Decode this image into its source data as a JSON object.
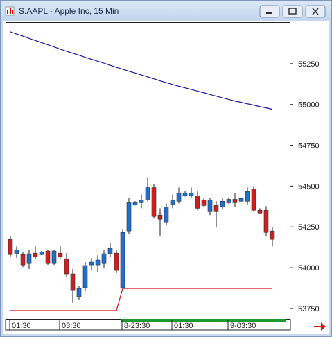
{
  "chart_data": {
    "type": "candlestick",
    "title": "S.AAPL - Apple Inc, 15 Min",
    "categories": [
      "01:30",
      null,
      null,
      null,
      null,
      null,
      null,
      null,
      "03:30",
      null,
      null,
      null,
      null,
      null,
      null,
      null,
      null,
      null,
      "8-23:30",
      null,
      null,
      null,
      null,
      null,
      null,
      null,
      "01:30",
      null,
      null,
      null,
      null,
      null,
      null,
      null,
      null,
      "9-03:30",
      null,
      null,
      null,
      null,
      null,
      null,
      null
    ],
    "open": [
      54174,
      54085,
      54080,
      54025,
      54089,
      54080,
      54102,
      54025,
      54089,
      54055,
      53962,
      53822,
      53877,
      54017,
      54017,
      54025,
      54085,
      54089,
      53877,
      54225,
      54386,
      54398,
      54419,
      54491,
      54322,
      54280,
      54386,
      54407,
      54441,
      54441,
      54441,
      54415,
      54343,
      54381,
      54373,
      54398,
      54419,
      54407,
      54407,
      54483,
      54352,
      54352,
      54225
    ],
    "high": [
      54195,
      54131,
      54097,
      54110,
      54131,
      54102,
      54110,
      54110,
      54131,
      54089,
      53992,
      53890,
      54034,
      54059,
      54076,
      54110,
      54153,
      54110,
      54237,
      54428,
      54407,
      54449,
      54555,
      54513,
      54364,
      54394,
      54449,
      54491,
      54470,
      54491,
      54470,
      54424,
      54428,
      54407,
      54428,
      54430,
      54458,
      54430,
      54491,
      54500,
      54364,
      54377,
      54250
    ],
    "low": [
      54068,
      54059,
      54004,
      53992,
      54055,
      54076,
      54017,
      54017,
      54059,
      53941,
      53784,
      53805,
      53856,
      53983,
      53975,
      54000,
      54068,
      53970,
      53864,
      54208,
      54381,
      54364,
      54407,
      54301,
      54195,
      54258,
      54364,
      54394,
      54436,
      54428,
      54352,
      54373,
      54322,
      54246,
      54356,
      54390,
      54373,
      54400,
      54386,
      54343,
      54330,
      54195,
      54131
    ],
    "close": [
      54080,
      54110,
      54017,
      54085,
      54068,
      54097,
      54025,
      54102,
      54068,
      53962,
      53864,
      53873,
      54013,
      54034,
      54047,
      54085,
      54119,
      53983,
      54216,
      54398,
      54398,
      54415,
      54491,
      54314,
      54297,
      54373,
      54415,
      54458,
      54458,
      54458,
      54364,
      54381,
      54415,
      54343,
      54407,
      54419,
      54398,
      54424,
      54466,
      54352,
      54335,
      54216,
      54174
    ],
    "up_color": "#1f6fd1",
    "down_color": "#cc1f1f",
    "lines": [
      {
        "color": "#1a1aa0",
        "values": [
          55445,
          55432,
          55419,
          55405,
          55392,
          55379,
          55366,
          55353,
          55339,
          55326,
          55314,
          55302,
          55289,
          55277,
          55265,
          55253,
          55240,
          55228,
          55216,
          55204,
          55193,
          55181,
          55169,
          55157,
          55145,
          55134,
          55122,
          55112,
          55102,
          55092,
          55082,
          55072,
          55061,
          55051,
          55041,
          55031,
          55021,
          55013,
          55004,
          54996,
          54987,
          54979,
          54970
        ]
      },
      {
        "color": "#d01010",
        "values": [
          53737,
          53737,
          53737,
          53737,
          53737,
          53737,
          53737,
          53737,
          53737,
          53737,
          53737,
          53737,
          53737,
          53737,
          53737,
          53737,
          53737,
          53737,
          53873,
          53873,
          53873,
          53873,
          53873,
          53873,
          53873,
          53873,
          53873,
          53873,
          53873,
          53873,
          53873,
          53873,
          53873,
          53873,
          53873,
          53873,
          53873,
          53873,
          53873,
          53873,
          53873,
          53873,
          53873
        ]
      }
    ],
    "ylim": [
      53686,
      55500
    ],
    "yticks": [
      53750,
      54000,
      54250,
      54500,
      54750,
      55000,
      55250
    ]
  }
}
